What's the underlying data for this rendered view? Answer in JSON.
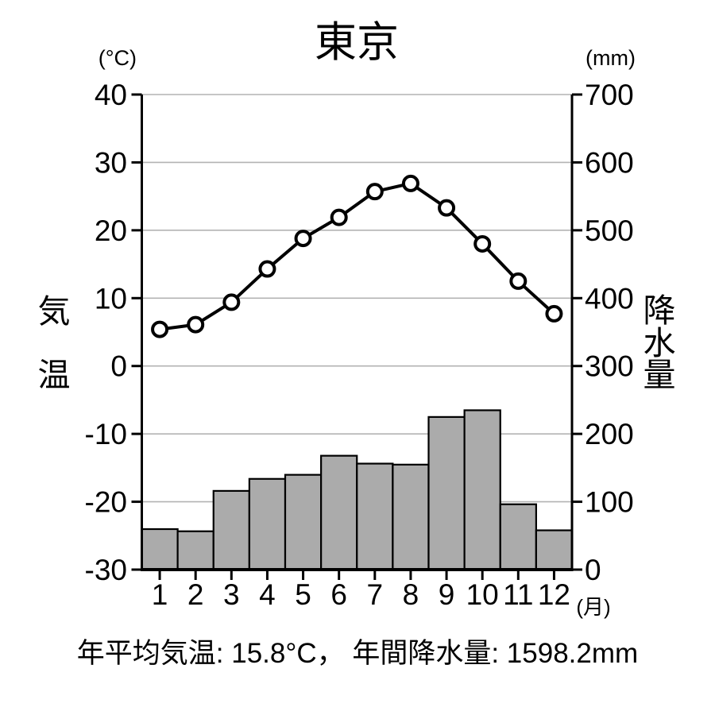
{
  "chart_data": {
    "type": "combo",
    "title": "東京",
    "categories": [
      "1",
      "2",
      "3",
      "4",
      "5",
      "6",
      "7",
      "8",
      "9",
      "10",
      "11",
      "12"
    ],
    "x_unit": "(月)",
    "series": [
      {
        "name": "気温",
        "type": "line",
        "axis": "left",
        "unit": "°C",
        "values": [
          5.4,
          6.1,
          9.4,
          14.3,
          18.8,
          21.9,
          25.7,
          26.9,
          23.3,
          18.0,
          12.5,
          7.7
        ]
      },
      {
        "name": "降水量",
        "type": "bar",
        "axis": "right",
        "unit": "mm",
        "values": [
          59.7,
          56.5,
          116.0,
          133.7,
          139.7,
          167.8,
          156.2,
          154.7,
          224.9,
          234.8,
          96.3,
          57.9
        ]
      }
    ],
    "left_axis": {
      "unit_label": "(°C)",
      "title": "気温",
      "title_vertical": "気\n温",
      "ticks": [
        40,
        30,
        20,
        10,
        0,
        -10,
        -20,
        -30
      ],
      "ylim": [
        -30,
        40
      ]
    },
    "right_axis": {
      "unit_label": "(mm)",
      "title": "降水量",
      "title_vertical": "降\n水\n量",
      "ticks": [
        700,
        600,
        500,
        400,
        300,
        200,
        100,
        0
      ],
      "ylim": [
        0,
        700
      ]
    },
    "grid": "horizontal-gridlines",
    "legend": "none",
    "caption": "年平均気温: 15.8°C， 年間降水量: 1598.2mm",
    "annotations": {
      "annual_mean_temperature": "15.8°C",
      "annual_precipitation": "1598.2mm"
    },
    "colors": {
      "bar_fill": "#ababab",
      "bar_edge": "#000000",
      "line": "#000000",
      "marker_fill": "#ffffff",
      "grid": "#b3b3b3",
      "axis": "#000000",
      "background": "#ffffff",
      "text": "#000000"
    }
  }
}
